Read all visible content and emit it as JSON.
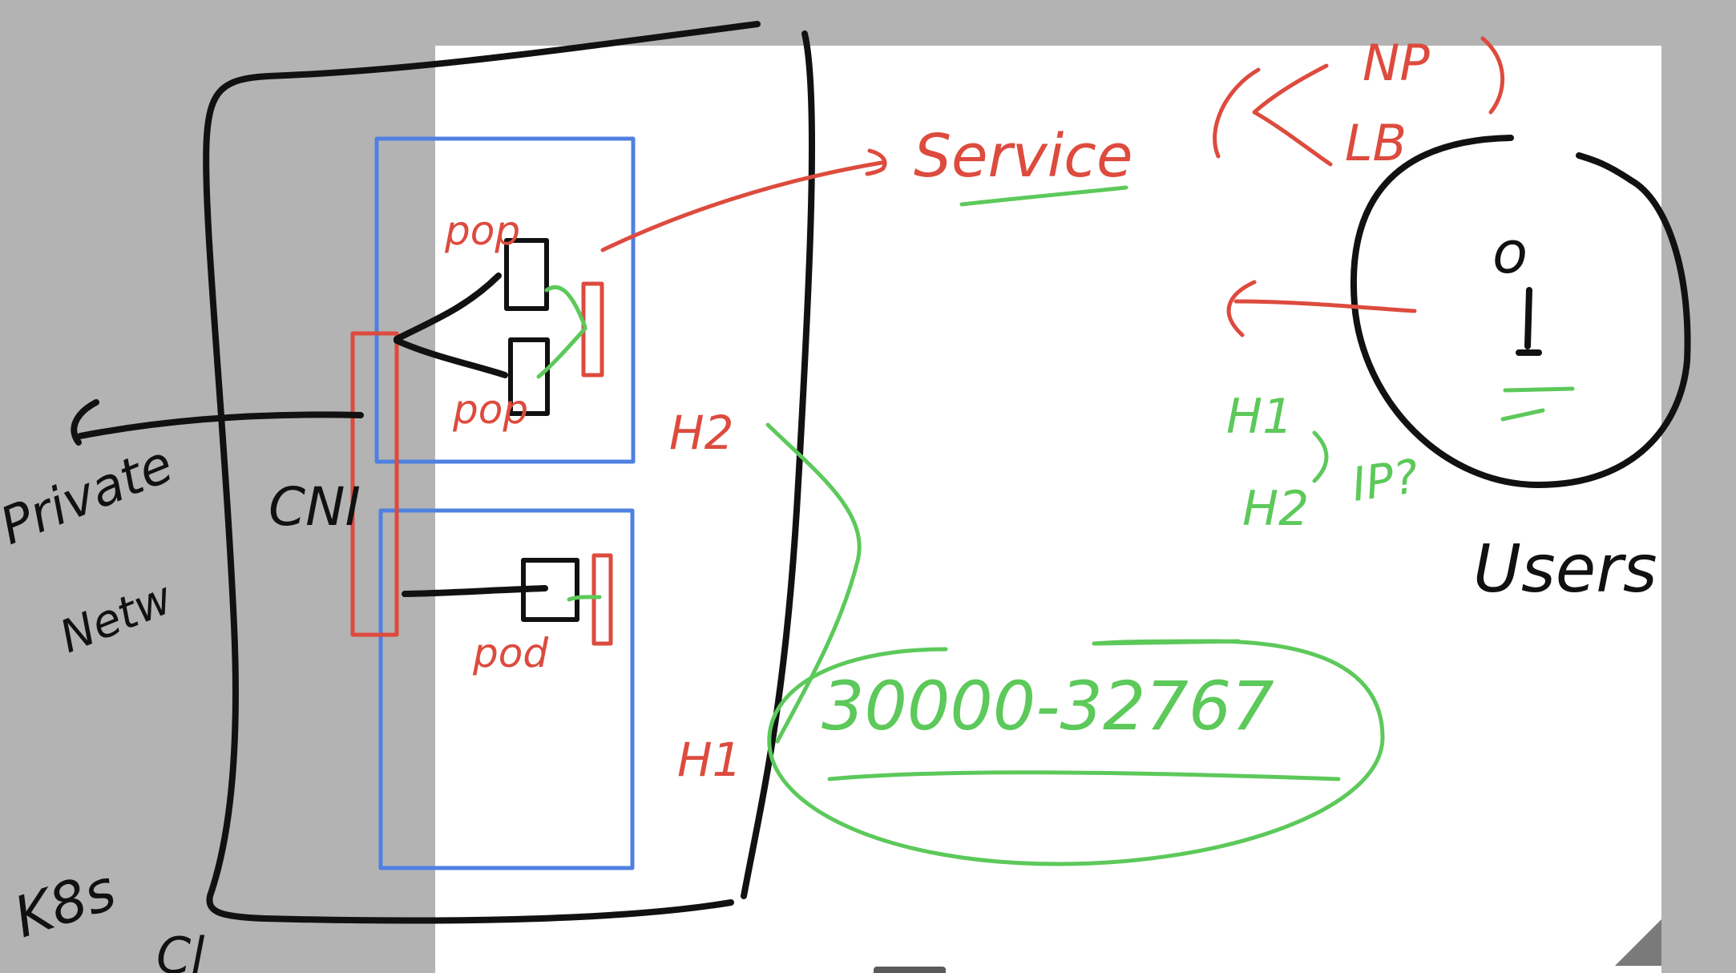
{
  "diagram": {
    "labels": {
      "service": "Service",
      "np": "NP",
      "lb": "LB",
      "pod_top": "pop",
      "pod_middle": "pop",
      "pod_bottom": "pod",
      "cni": "CNI",
      "private_network_line1": "Private",
      "private_network_line2": "Netw",
      "k8s_cluster_line1": "K8s",
      "k8s_cluster_line2": "Cl",
      "node_h2": "H2",
      "node_h1": "H1",
      "port_range": "30000-32767",
      "users": "Users",
      "users_h1": "H1",
      "users_h2": "H2",
      "users_ip": "IP?",
      "person_glyph": "o"
    },
    "colors": {
      "ink_black": "#111111",
      "ink_red": "#dd4b3e",
      "ink_green": "#5cc95a",
      "ink_blue": "#4f80e1",
      "canvas_white": "#ffffff",
      "background_gray": "#b3b3b3"
    }
  }
}
